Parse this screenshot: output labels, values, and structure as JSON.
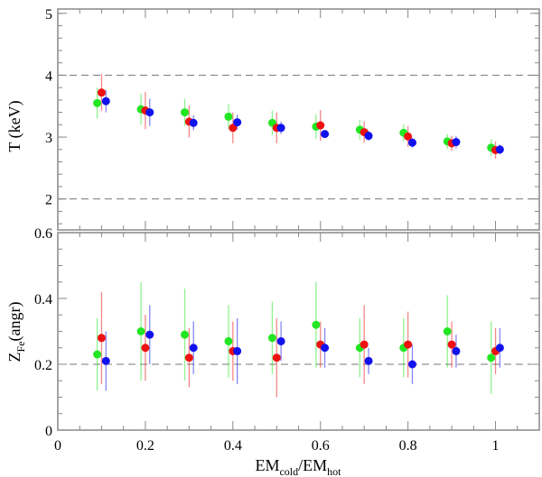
{
  "chart_data": [
    {
      "type": "scatter",
      "panel": "top",
      "ylabel": "T (keV)",
      "ylim": [
        1.5,
        5.07
      ],
      "xlim": [
        0,
        1.1
      ],
      "yticks": [
        "2",
        "3",
        "4",
        "5"
      ],
      "reference_lines": [
        2,
        4
      ],
      "series": [
        {
          "name": "green",
          "color": "#22e622",
          "x": [
            0.09,
            0.19,
            0.29,
            0.39,
            0.49,
            0.59,
            0.69,
            0.79,
            0.89,
            0.99
          ],
          "y": [
            3.55,
            3.45,
            3.4,
            3.33,
            3.23,
            3.17,
            3.12,
            3.07,
            2.93,
            2.83
          ],
          "err": [
            0.25,
            0.25,
            0.22,
            0.2,
            0.2,
            0.2,
            0.16,
            0.14,
            0.12,
            0.14
          ]
        },
        {
          "name": "red",
          "color": "#ee1111",
          "x": [
            0.1,
            0.2,
            0.3,
            0.4,
            0.5,
            0.6,
            0.7,
            0.8,
            0.9,
            1.0
          ],
          "y": [
            3.72,
            3.43,
            3.25,
            3.15,
            3.15,
            3.19,
            3.08,
            3.01,
            2.9,
            2.79
          ],
          "err": [
            0.3,
            0.3,
            0.26,
            0.25,
            0.25,
            0.25,
            0.17,
            0.17,
            0.12,
            0.14
          ]
        },
        {
          "name": "blue",
          "color": "#1111ee",
          "x": [
            0.11,
            0.21,
            0.31,
            0.41,
            0.51,
            0.61,
            0.71,
            0.81,
            0.91,
            1.01
          ],
          "y": [
            3.58,
            3.4,
            3.23,
            3.24,
            3.15,
            3.05,
            3.02,
            2.91,
            2.92,
            2.8
          ],
          "err": [
            0.18,
            0.22,
            0.12,
            0.12,
            0.1,
            0.05,
            0.08,
            0.08,
            0.1,
            0.08
          ]
        }
      ]
    },
    {
      "type": "scatter",
      "panel": "bottom",
      "xlabel": "EM_cold/EM_hot",
      "ylabel": "Z_Fe (angr)",
      "ylim": [
        0,
        0.6
      ],
      "xlim": [
        0,
        1.1
      ],
      "yticks": [
        "0",
        "0.2",
        "0.4",
        "0.6"
      ],
      "xticks": [
        "0",
        "0.2",
        "0.4",
        "0.6",
        "0.8",
        "1"
      ],
      "reference_lines": [
        0.2
      ],
      "series": [
        {
          "name": "green",
          "color": "#22e622",
          "x": [
            0.09,
            0.19,
            0.29,
            0.39,
            0.49,
            0.59,
            0.69,
            0.79,
            0.89,
            0.99
          ],
          "y": [
            0.23,
            0.3,
            0.29,
            0.27,
            0.28,
            0.32,
            0.25,
            0.25,
            0.3,
            0.22
          ],
          "err": [
            0.11,
            0.15,
            0.14,
            0.11,
            0.11,
            0.13,
            0.09,
            0.09,
            0.11,
            0.11
          ]
        },
        {
          "name": "red",
          "color": "#ee1111",
          "x": [
            0.1,
            0.2,
            0.3,
            0.4,
            0.5,
            0.6,
            0.7,
            0.8,
            0.9,
            1.0
          ],
          "y": [
            0.28,
            0.25,
            0.22,
            0.24,
            0.22,
            0.26,
            0.26,
            0.26,
            0.26,
            0.24
          ],
          "err": [
            0.14,
            0.1,
            0.09,
            0.09,
            0.12,
            0.07,
            0.12,
            0.1,
            0.07,
            0.07
          ]
        },
        {
          "name": "blue",
          "color": "#1111ee",
          "x": [
            0.11,
            0.21,
            0.31,
            0.41,
            0.51,
            0.61,
            0.71,
            0.81,
            0.91,
            1.01
          ],
          "y": [
            0.21,
            0.29,
            0.25,
            0.24,
            0.27,
            0.25,
            0.21,
            0.2,
            0.24,
            0.25
          ],
          "err": [
            0.09,
            0.09,
            0.08,
            0.1,
            0.06,
            0.06,
            0.04,
            0.06,
            0.05,
            0.06
          ]
        }
      ]
    }
  ],
  "labels": {
    "top_ylabel": "T (keV)",
    "bottom_ylabel_main": "Z",
    "bottom_ylabel_sub": "Fe",
    "bottom_ylabel_rest": "(angr)",
    "xlabel_em1": "EM",
    "xlabel_sub1": "cold",
    "xlabel_slash": "/EM",
    "xlabel_sub2": "hot"
  }
}
